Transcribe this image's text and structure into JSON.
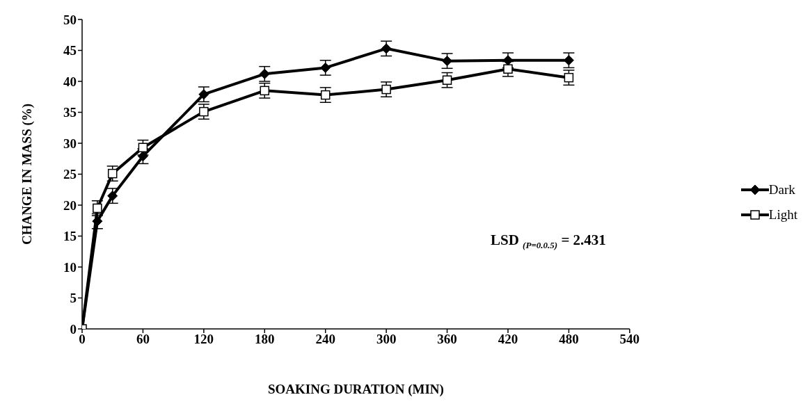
{
  "chart_data": {
    "type": "line",
    "xlabel": "SOAKING DURATION (MIN)",
    "ylabel": "CHANGE IN MASS (%)",
    "x": [
      0,
      15,
      30,
      60,
      120,
      180,
      240,
      300,
      360,
      420,
      480
    ],
    "series": [
      {
        "name": "Dark",
        "color": "#000000",
        "marker": "diamond",
        "values": [
          0,
          17.4,
          21.5,
          27.9,
          37.9,
          41.2,
          42.2,
          45.3,
          43.3,
          43.4,
          43.4
        ],
        "errors": [
          null,
          1.2,
          1.2,
          1.2,
          1.2,
          1.2,
          1.2,
          1.2,
          1.2,
          1.2,
          1.2
        ]
      },
      {
        "name": "Light",
        "color": "#000000",
        "marker": "square",
        "values": [
          0,
          19.5,
          25.1,
          29.3,
          35.1,
          38.5,
          37.8,
          38.7,
          40.2,
          42.0,
          40.6
        ],
        "errors": [
          null,
          1.2,
          1.2,
          1.2,
          1.2,
          1.2,
          1.2,
          1.2,
          1.2,
          1.2,
          1.2
        ]
      }
    ],
    "xlim": [
      0,
      540
    ],
    "xticks": [
      0,
      60,
      120,
      180,
      240,
      300,
      360,
      420,
      480,
      540
    ],
    "ylim": [
      0,
      50
    ],
    "yticks": [
      0,
      5,
      10,
      15,
      20,
      25,
      30,
      35,
      40,
      45,
      50
    ],
    "grid": false,
    "legend": "right",
    "line_style": "solid",
    "annotations": [
      {
        "text": "LSD $_{(P=0.0.5)}$ = 2.431"
      }
    ]
  }
}
